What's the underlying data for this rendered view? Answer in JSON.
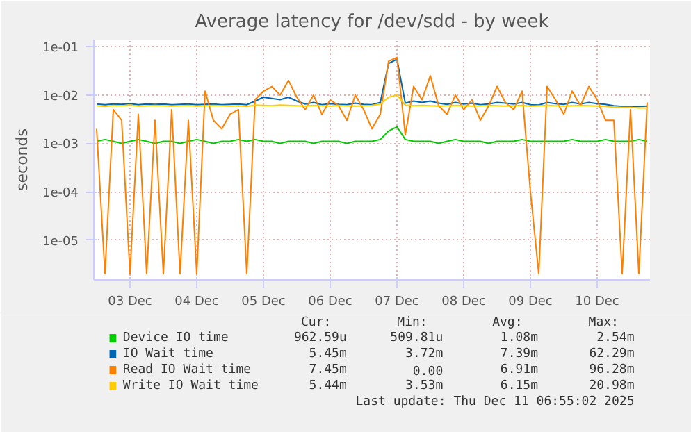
{
  "chart_data": {
    "type": "line",
    "title": "Average latency for /dev/sdd - by week",
    "ylabel": "seconds",
    "log": true,
    "grid": true,
    "legend": "bottom",
    "marker": "none",
    "line_style": "solid",
    "ylim": [
      1.5e-06,
      0.14
    ],
    "yticks": [
      {
        "value": 1e-05,
        "label": "1e-05"
      },
      {
        "value": 0.0001,
        "label": "1e-04"
      },
      {
        "value": 0.001,
        "label": "1e-03"
      },
      {
        "value": 0.01,
        "label": "1e-02"
      },
      {
        "value": 0.1,
        "label": "1e-01"
      }
    ],
    "xlim": [
      "2025-12-02T23:00",
      "2025-12-11T07:00"
    ],
    "xticks": [
      {
        "value": "2025-12-03T12:00",
        "label": "03 Dec"
      },
      {
        "value": "2025-12-04T12:00",
        "label": "04 Dec"
      },
      {
        "value": "2025-12-05T12:00",
        "label": "05 Dec"
      },
      {
        "value": "2025-12-06T12:00",
        "label": "06 Dec"
      },
      {
        "value": "2025-12-07T12:00",
        "label": "07 Dec"
      },
      {
        "value": "2025-12-08T12:00",
        "label": "08 Dec"
      },
      {
        "value": "2025-12-09T12:00",
        "label": "09 Dec"
      },
      {
        "value": "2025-12-10T12:00",
        "label": "10 Dec"
      }
    ],
    "x": [
      "2025-12-03T00:00",
      "2025-12-03T03:00",
      "2025-12-03T06:00",
      "2025-12-03T09:00",
      "2025-12-03T12:00",
      "2025-12-03T15:00",
      "2025-12-03T18:00",
      "2025-12-03T21:00",
      "2025-12-04T00:00",
      "2025-12-04T03:00",
      "2025-12-04T06:00",
      "2025-12-04T09:00",
      "2025-12-04T12:00",
      "2025-12-04T15:00",
      "2025-12-04T18:00",
      "2025-12-04T21:00",
      "2025-12-05T00:00",
      "2025-12-05T03:00",
      "2025-12-05T06:00",
      "2025-12-05T09:00",
      "2025-12-05T12:00",
      "2025-12-05T15:00",
      "2025-12-05T18:00",
      "2025-12-05T21:00",
      "2025-12-06T00:00",
      "2025-12-06T03:00",
      "2025-12-06T06:00",
      "2025-12-06T09:00",
      "2025-12-06T12:00",
      "2025-12-06T15:00",
      "2025-12-06T18:00",
      "2025-12-06T21:00",
      "2025-12-07T00:00",
      "2025-12-07T03:00",
      "2025-12-07T06:00",
      "2025-12-07T09:00",
      "2025-12-07T12:00",
      "2025-12-07T15:00",
      "2025-12-07T18:00",
      "2025-12-07T21:00",
      "2025-12-08T00:00",
      "2025-12-08T03:00",
      "2025-12-08T06:00",
      "2025-12-08T09:00",
      "2025-12-08T12:00",
      "2025-12-08T15:00",
      "2025-12-08T18:00",
      "2025-12-08T21:00",
      "2025-12-09T00:00",
      "2025-12-09T03:00",
      "2025-12-09T06:00",
      "2025-12-09T09:00",
      "2025-12-09T12:00",
      "2025-12-09T15:00",
      "2025-12-09T18:00",
      "2025-12-09T21:00",
      "2025-12-10T00:00",
      "2025-12-10T03:00",
      "2025-12-10T06:00",
      "2025-12-10T09:00",
      "2025-12-10T12:00",
      "2025-12-10T15:00",
      "2025-12-10T18:00",
      "2025-12-10T21:00",
      "2025-12-11T00:00",
      "2025-12-11T03:00",
      "2025-12-11T06:00"
    ],
    "series": [
      {
        "name": "Device IO time",
        "color": "#00cc00",
        "values": [
          0.0011,
          0.0012,
          0.0011,
          0.001,
          0.0011,
          0.0012,
          0.0011,
          0.001,
          0.0011,
          0.0011,
          0.001,
          0.0011,
          0.0012,
          0.0011,
          0.001,
          0.0011,
          0.0011,
          0.0012,
          0.0011,
          0.0012,
          0.0011,
          0.0011,
          0.001,
          0.0011,
          0.0011,
          0.0011,
          0.001,
          0.0011,
          0.0011,
          0.0011,
          0.001,
          0.0011,
          0.0011,
          0.0011,
          0.0012,
          0.0018,
          0.0022,
          0.0012,
          0.0011,
          0.0011,
          0.0011,
          0.001,
          0.0011,
          0.0012,
          0.0011,
          0.0011,
          0.0011,
          0.001,
          0.0011,
          0.0011,
          0.0011,
          0.0012,
          0.0011,
          0.0011,
          0.0011,
          0.0011,
          0.0011,
          0.0012,
          0.0011,
          0.0011,
          0.0011,
          0.0012,
          0.0011,
          0.0011,
          0.0011,
          0.0012,
          0.0011
        ]
      },
      {
        "name": "IO Wait time",
        "color": "#0066b3",
        "values": [
          0.0065,
          0.0063,
          0.0065,
          0.0064,
          0.0066,
          0.0063,
          0.0065,
          0.0064,
          0.0065,
          0.0063,
          0.0064,
          0.0065,
          0.0063,
          0.0064,
          0.0065,
          0.0063,
          0.0064,
          0.0065,
          0.0063,
          0.0075,
          0.009,
          0.0085,
          0.008,
          0.009,
          0.0075,
          0.0065,
          0.007,
          0.0063,
          0.0066,
          0.0064,
          0.0063,
          0.0068,
          0.0064,
          0.0063,
          0.007,
          0.045,
          0.055,
          0.0068,
          0.0075,
          0.007,
          0.0075,
          0.0068,
          0.0064,
          0.007,
          0.0065,
          0.0068,
          0.0063,
          0.0065,
          0.007,
          0.0068,
          0.0065,
          0.007,
          0.0063,
          0.0062,
          0.007,
          0.0066,
          0.0064,
          0.007,
          0.0065,
          0.007,
          0.0066,
          0.0064,
          0.006,
          0.0058,
          0.0057,
          0.0058,
          0.0059
        ]
      },
      {
        "name": "Read IO Wait time",
        "color": "#ff8000",
        "values": [
          0.002,
          2e-06,
          0.005,
          0.003,
          2e-06,
          0.004,
          2e-06,
          0.003,
          2e-06,
          0.005,
          2e-06,
          0.003,
          2e-06,
          0.012,
          0.003,
          0.002,
          0.004,
          0.005,
          2e-06,
          0.008,
          0.012,
          0.015,
          0.01,
          0.02,
          0.009,
          0.005,
          0.01,
          0.004,
          0.008,
          0.006,
          0.003,
          0.01,
          0.005,
          0.002,
          0.004,
          0.05,
          0.06,
          0.0015,
          0.015,
          0.008,
          0.025,
          0.006,
          0.004,
          0.01,
          0.005,
          0.008,
          0.003,
          0.006,
          0.015,
          0.007,
          0.005,
          0.012,
          0.0001,
          2e-06,
          0.015,
          0.008,
          0.004,
          0.012,
          0.006,
          0.015,
          0.008,
          0.003,
          0.003,
          2e-06,
          0.005,
          2e-06,
          0.007
        ]
      },
      {
        "name": "Write IO Wait time",
        "color": "#ffcc00",
        "values": [
          0.006,
          0.0058,
          0.0061,
          0.006,
          0.0062,
          0.0059,
          0.006,
          0.0061,
          0.006,
          0.0059,
          0.006,
          0.0061,
          0.0059,
          0.006,
          0.0061,
          0.006,
          0.0059,
          0.006,
          0.0058,
          0.0062,
          0.0061,
          0.006,
          0.0062,
          0.0061,
          0.006,
          0.0059,
          0.0061,
          0.006,
          0.0059,
          0.0061,
          0.006,
          0.0059,
          0.006,
          0.0061,
          0.0065,
          0.009,
          0.01,
          0.0062,
          0.006,
          0.0061,
          0.006,
          0.0059,
          0.006,
          0.0061,
          0.006,
          0.0059,
          0.006,
          0.0061,
          0.006,
          0.0059,
          0.006,
          0.0061,
          0.0059,
          0.006,
          0.0061,
          0.006,
          0.0059,
          0.006,
          0.0061,
          0.006,
          0.0059,
          0.0058,
          0.0056,
          0.0055,
          0.0055,
          0.0054,
          0.0054
        ]
      }
    ],
    "annotations": [
      "Cur:",
      "Min:",
      "Avg:",
      "Max:",
      "962.59u",
      "509.81u",
      "1.08m",
      "2.54m",
      "5.45m",
      "3.72m",
      "7.39m",
      "62.29m",
      "7.45m",
      "0.00",
      "6.91m",
      "96.28m",
      "5.44m",
      "3.53m",
      "6.15m",
      "20.98m",
      "Last update: Thu Dec 11 06:55:02 2025"
    ]
  }
}
